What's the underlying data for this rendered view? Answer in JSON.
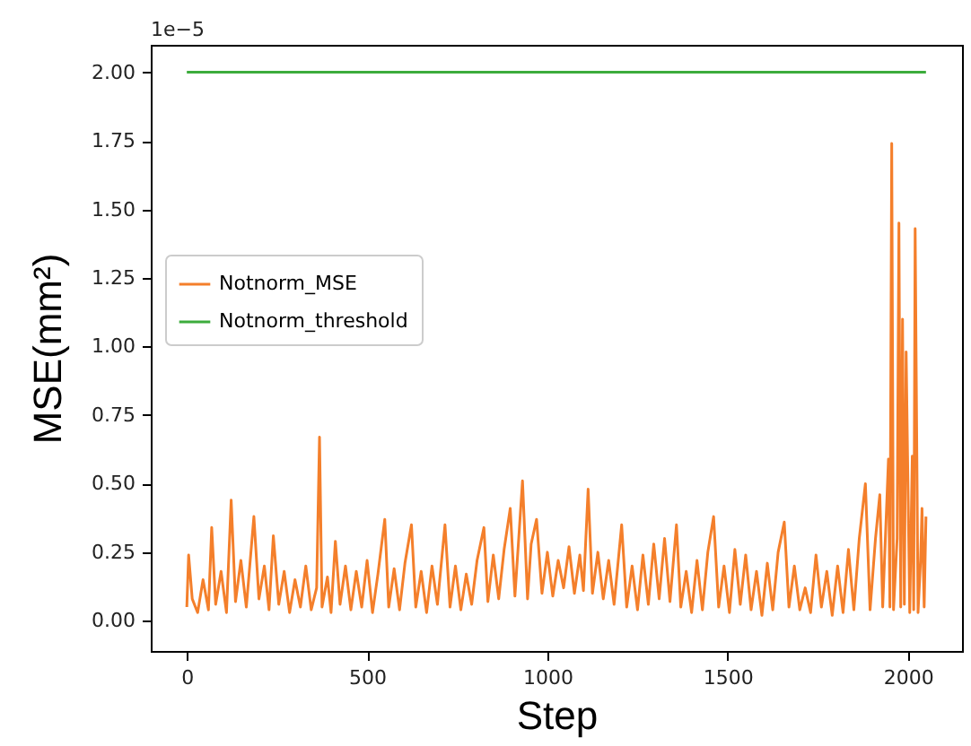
{
  "chart_data": {
    "type": "line",
    "xlabel": "Step",
    "ylabel": "MSE(mm²)",
    "annotations": [
      "1e−5"
    ],
    "xlim": [
      -100,
      2150
    ],
    "ylim": [
      -0.11,
      2.1
    ],
    "xticks": [
      0,
      500,
      1000,
      1500,
      2000
    ],
    "yticks": [
      {
        "value": 0,
        "label": "0.00"
      },
      {
        "value": 0.25,
        "label": "0.25"
      },
      {
        "value": 0.5,
        "label": "0.50"
      },
      {
        "value": 0.75,
        "label": "0.75"
      },
      {
        "value": 1,
        "label": "1.00"
      },
      {
        "value": 1.25,
        "label": "1.25"
      },
      {
        "value": 1.5,
        "label": "1.50"
      },
      {
        "value": 1.75,
        "label": "1.75"
      },
      {
        "value": 2,
        "label": "2.00"
      }
    ],
    "grid": false,
    "legend": "left",
    "marker": "none",
    "line_style": "solid",
    "series": [
      {
        "name": "Notnorm_MSE",
        "color": "#f47f2b",
        "x": [
          0,
          5,
          15,
          30,
          45,
          60,
          69,
          80,
          95,
          110,
          123,
          135,
          150,
          165,
          186,
          200,
          215,
          228,
          240,
          255,
          270,
          285,
          300,
          315,
          330,
          345,
          360,
          368,
          375,
          390,
          400,
          412,
          425,
          440,
          455,
          470,
          485,
          500,
          515,
          530,
          549,
          560,
          575,
          590,
          605,
          623,
          635,
          650,
          665,
          680,
          695,
          716,
          730,
          745,
          760,
          775,
          790,
          805,
          824,
          835,
          850,
          865,
          880,
          897,
          910,
          931,
          945,
          955,
          970,
          985,
          1000,
          1015,
          1030,
          1045,
          1060,
          1075,
          1090,
          1100,
          1113,
          1125,
          1140,
          1155,
          1170,
          1185,
          1206,
          1220,
          1235,
          1250,
          1265,
          1280,
          1295,
          1310,
          1325,
          1340,
          1358,
          1370,
          1385,
          1400,
          1415,
          1430,
          1445,
          1461,
          1475,
          1490,
          1505,
          1520,
          1535,
          1550,
          1565,
          1580,
          1595,
          1610,
          1625,
          1640,
          1657,
          1670,
          1685,
          1700,
          1715,
          1730,
          1745,
          1760,
          1775,
          1790,
          1805,
          1820,
          1835,
          1850,
          1865,
          1882,
          1895,
          1910,
          1922,
          1930,
          1946,
          1950,
          1955,
          1960,
          1970,
          1975,
          1980,
          1985,
          1990,
          1995,
          2005,
          2012,
          2016,
          2020,
          2028,
          2035,
          2039,
          2045,
          2050
        ],
        "values": [
          0.05,
          0.24,
          0.08,
          0.03,
          0.15,
          0.04,
          0.34,
          0.06,
          0.18,
          0.03,
          0.44,
          0.07,
          0.22,
          0.05,
          0.38,
          0.08,
          0.2,
          0.04,
          0.31,
          0.06,
          0.18,
          0.03,
          0.15,
          0.05,
          0.2,
          0.04,
          0.12,
          0.67,
          0.05,
          0.16,
          0.03,
          0.29,
          0.06,
          0.2,
          0.04,
          0.18,
          0.05,
          0.22,
          0.03,
          0.17,
          0.37,
          0.05,
          0.19,
          0.04,
          0.21,
          0.35,
          0.05,
          0.18,
          0.03,
          0.2,
          0.06,
          0.35,
          0.05,
          0.2,
          0.04,
          0.17,
          0.06,
          0.22,
          0.34,
          0.07,
          0.24,
          0.08,
          0.26,
          0.41,
          0.09,
          0.51,
          0.08,
          0.28,
          0.37,
          0.1,
          0.25,
          0.09,
          0.22,
          0.12,
          0.27,
          0.1,
          0.24,
          0.11,
          0.48,
          0.1,
          0.25,
          0.08,
          0.22,
          0.06,
          0.35,
          0.05,
          0.2,
          0.04,
          0.24,
          0.06,
          0.28,
          0.08,
          0.3,
          0.07,
          0.35,
          0.05,
          0.18,
          0.03,
          0.22,
          0.04,
          0.25,
          0.38,
          0.05,
          0.2,
          0.03,
          0.26,
          0.06,
          0.24,
          0.04,
          0.18,
          0.02,
          0.21,
          0.04,
          0.25,
          0.36,
          0.05,
          0.2,
          0.04,
          0.12,
          0.03,
          0.24,
          0.05,
          0.18,
          0.02,
          0.2,
          0.03,
          0.26,
          0.04,
          0.3,
          0.5,
          0.04,
          0.3,
          0.46,
          0.05,
          0.59,
          0.05,
          1.74,
          0.04,
          0.3,
          1.45,
          0.05,
          1.1,
          0.06,
          0.98,
          0.03,
          0.6,
          0.04,
          1.43,
          0.03,
          0.22,
          0.41,
          0.05,
          0.38
        ]
      },
      {
        "name": "Notnorm_threshold",
        "color": "#3cac3c",
        "x": [
          0,
          2050
        ],
        "values": [
          2,
          2
        ]
      }
    ]
  }
}
